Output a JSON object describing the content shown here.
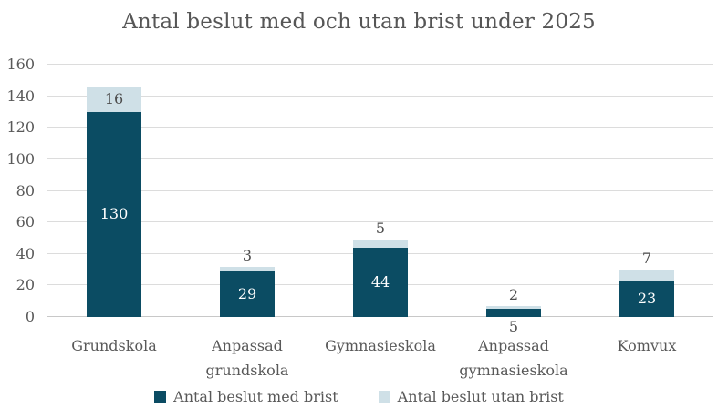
{
  "chart_data": {
    "type": "bar",
    "stacked": true,
    "title": "Antal beslut med och utan brist under 2025",
    "categories": [
      "Grundskola",
      "Anpassad grundskola",
      "Gymnasieskola",
      "Anpassad gymnasieskola",
      "Komvux"
    ],
    "series": [
      {
        "name": "Antal beslut med brist",
        "color": "#0b4c63",
        "values": [
          130,
          29,
          44,
          5,
          23
        ]
      },
      {
        "name": "Antal beslut utan brist",
        "color": "#cfe0e7",
        "values": [
          16,
          3,
          5,
          2,
          7
        ]
      }
    ],
    "totals": [
      146,
      32,
      49,
      7,
      30
    ],
    "ylim": [
      0,
      160
    ],
    "yticks": [
      0,
      20,
      40,
      60,
      80,
      100,
      120,
      140,
      160
    ],
    "grid": "horizontal",
    "legend_position": "bottom-center",
    "colors": {
      "label_on_dark": "#ffffff",
      "label_outside": "#4d4d4d",
      "text": "#595959",
      "title_text": "#565656",
      "gridline": "#dcdcdc",
      "axis_line": "#c8c8c8",
      "background": "#ffffff"
    }
  }
}
